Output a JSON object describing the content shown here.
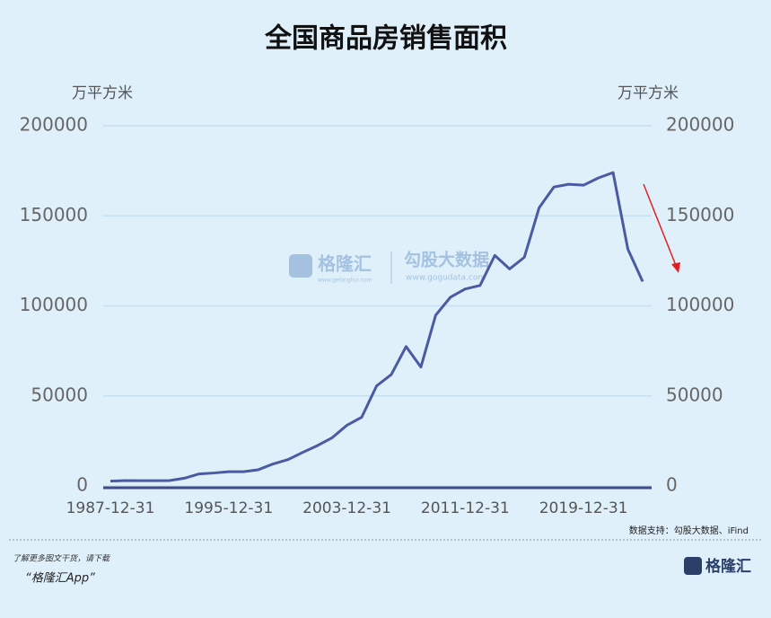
{
  "chart_data": {
    "type": "line",
    "title": "全国商品房销售面积",
    "y_label": "万平方米",
    "y2_label": "万平方米",
    "categories": [
      "1987-12-31",
      null,
      null,
      null,
      null,
      null,
      null,
      null,
      "1995-12-31",
      null,
      null,
      null,
      null,
      null,
      null,
      null,
      "2003-12-31",
      null,
      null,
      null,
      null,
      null,
      null,
      null,
      "2011-12-31",
      null,
      null,
      null,
      null,
      null,
      null,
      null,
      "2019-12-31",
      null,
      null,
      null,
      null
    ],
    "series": [
      {
        "name": "全国商品房销售面积",
        "color": "#4a5aa3",
        "values": [
          2700,
          3000,
          2900,
          2900,
          3000,
          4300,
          6700,
          7200,
          7900,
          7900,
          9000,
          12200,
          14600,
          18600,
          22400,
          26800,
          33700,
          38200,
          55500,
          61900,
          77400,
          66000,
          94800,
          104800,
          109400,
          111300,
          128000,
          120500,
          127000,
          154500,
          166000,
          167500,
          167000,
          171000,
          174000,
          131500,
          113500
        ]
      }
    ],
    "ylim": [
      0,
      200000
    ],
    "yticks": [
      0,
      50000,
      100000,
      150000,
      200000
    ],
    "y2lim": [
      0,
      200000
    ],
    "y2ticks": [
      0,
      50000,
      100000,
      150000,
      200000
    ],
    "grid": true,
    "source": "数据支持：勾股大数据、iFind"
  },
  "watermark": {
    "brand": "格隆汇",
    "brand_url": "www.gelonghui.com",
    "partner": "勾股大数据",
    "partner_url": "www.gogudata.com"
  },
  "footer": {
    "line1": "了解更多图文干货，请下载",
    "line2": "“格隆汇App”",
    "logo": "格隆汇"
  }
}
